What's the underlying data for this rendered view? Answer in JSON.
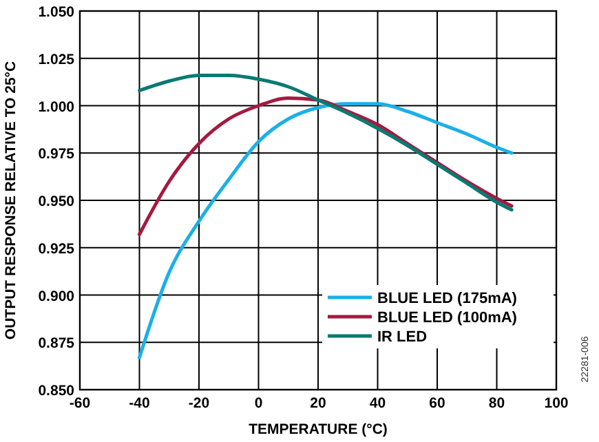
{
  "chart_data": {
    "type": "line",
    "xlabel": "TEMPERATURE (°C)",
    "ylabel": "OUTPUT RESPONSE RELATIVE TO 25°C",
    "xlim": [
      -60,
      100
    ],
    "xticks": [
      -60,
      -40,
      -20,
      0,
      20,
      40,
      60,
      80,
      100
    ],
    "ylim": [
      0.85,
      1.05
    ],
    "yticks": [
      {
        "value": 0.85,
        "label": "0.850"
      },
      {
        "value": 0.875,
        "label": "0.875"
      },
      {
        "value": 0.9,
        "label": "0.900"
      },
      {
        "value": 0.925,
        "label": "0.925"
      },
      {
        "value": 0.95,
        "label": "0.950"
      },
      {
        "value": 0.975,
        "label": "0.975"
      },
      {
        "value": 1.0,
        "label": "1.000"
      },
      {
        "value": 1.025,
        "label": "1.025"
      },
      {
        "value": 1.05,
        "label": "1.050"
      }
    ],
    "grid": true,
    "legend": "bottom right",
    "annotations": [
      "22281-006"
    ],
    "x": [
      -40,
      -30,
      -20,
      -10,
      0,
      10,
      20,
      30,
      40,
      50,
      60,
      70,
      80,
      85
    ],
    "series": [
      {
        "name": "BLUE LED (175mA)",
        "color": "#1ab0e8",
        "values": [
          0.867,
          0.912,
          0.939,
          0.961,
          0.981,
          0.993,
          0.999,
          1.001,
          1.001,
          0.997,
          0.991,
          0.985,
          0.978,
          0.975
        ]
      },
      {
        "name": "BLUE LED (100mA)",
        "color": "#a6193f",
        "values": [
          0.932,
          0.96,
          0.98,
          0.993,
          1.0,
          1.004,
          1.003,
          0.997,
          0.99,
          0.98,
          0.97,
          0.96,
          0.951,
          0.947
        ]
      },
      {
        "name": "IR LED",
        "color": "#0a7a73",
        "values": [
          1.008,
          1.013,
          1.016,
          1.016,
          1.014,
          1.01,
          1.003,
          0.996,
          0.988,
          0.979,
          0.969,
          0.959,
          0.949,
          0.945
        ]
      }
    ]
  }
}
